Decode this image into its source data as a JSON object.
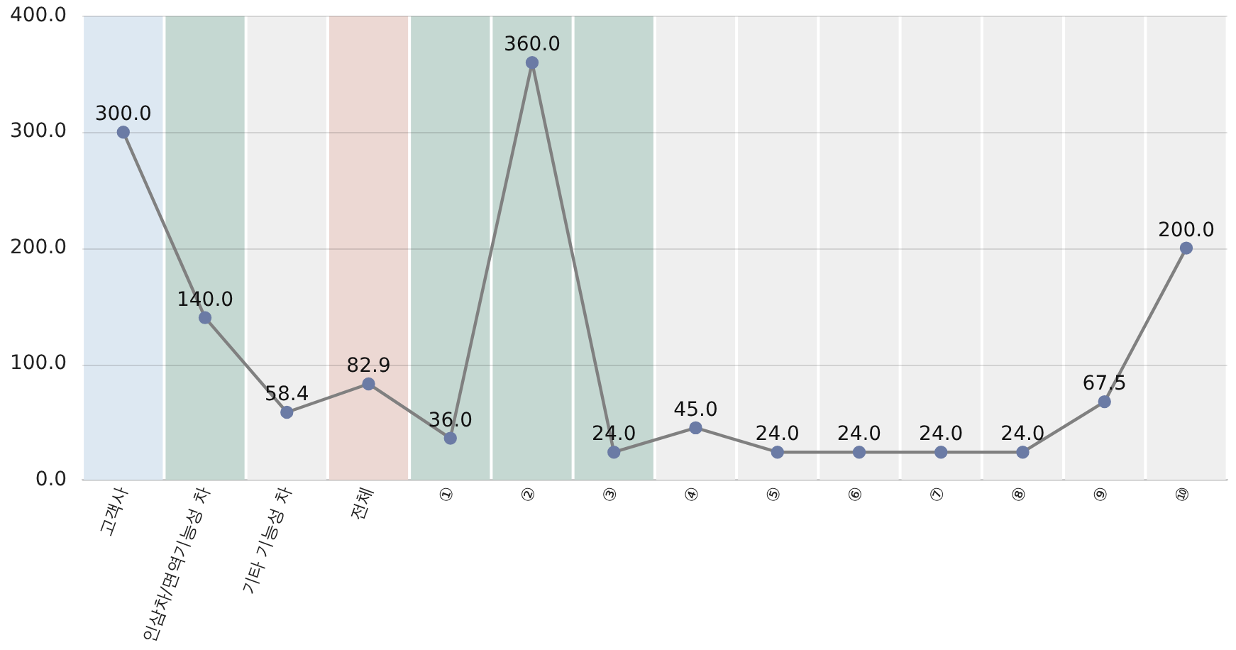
{
  "chart_data": {
    "type": "line",
    "categories": [
      "고객사",
      "인삼차/면역기능성 차",
      "기타 기능성 차",
      "전체",
      "①",
      "②",
      "③",
      "④",
      "⑤",
      "⑥",
      "⑦",
      "⑧",
      "⑨",
      "⑩"
    ],
    "series": [
      {
        "color": "#808080",
        "values": [
          300.0,
          140.0,
          58.4,
          82.9,
          36.0,
          360.0,
          24.0,
          45.0,
          24.0,
          24.0,
          24.0,
          24.0,
          67.5,
          200.0
        ],
        "value_labels": [
          "300.0",
          "140.0",
          "58.4",
          "82.9",
          "36.0",
          "360.0",
          "24.0",
          "45.0",
          "24.0",
          "24.0",
          "24.0",
          "24.0",
          "67.5",
          "200.0"
        ]
      }
    ],
    "ylim": [
      0,
      400
    ],
    "yticks": [
      {
        "value": 0,
        "label": "0.0"
      },
      {
        "value": 100,
        "label": "100.0"
      },
      {
        "value": 200,
        "label": "200.0"
      },
      {
        "value": 300,
        "label": "300.0"
      },
      {
        "value": 400,
        "label": "400.0"
      }
    ],
    "grid": "y",
    "legend": false,
    "marker": "circle",
    "line_style": "solid",
    "bands": [
      {
        "axis": "x",
        "from": "고객사",
        "to": "고객사",
        "color": "#dde8f2"
      },
      {
        "axis": "x",
        "from": "인삼차/면역기능성 차",
        "to": "인삼차/면역기능성 차",
        "color": "#c5d8d2"
      },
      {
        "axis": "x",
        "from": "기타 기능성 차",
        "to": "기타 기능성 차",
        "color": "#efefef"
      },
      {
        "axis": "x",
        "from": "전체",
        "to": "전체",
        "color": "#ecd8d3"
      },
      {
        "axis": "x",
        "from": "①",
        "to": "①",
        "color": "#c5d8d2"
      },
      {
        "axis": "x",
        "from": "②",
        "to": "②",
        "color": "#c5d8d2"
      },
      {
        "axis": "x",
        "from": "③",
        "to": "③",
        "color": "#c5d8d2"
      },
      {
        "axis": "x",
        "from": "④",
        "to": "④",
        "color": "#efefef"
      },
      {
        "axis": "x",
        "from": "⑤",
        "to": "⑤",
        "color": "#efefef"
      },
      {
        "axis": "x",
        "from": "⑥",
        "to": "⑥",
        "color": "#efefef"
      },
      {
        "axis": "x",
        "from": "⑦",
        "to": "⑦",
        "color": "#efefef"
      },
      {
        "axis": "x",
        "from": "⑧",
        "to": "⑧",
        "color": "#efefef"
      },
      {
        "axis": "x",
        "from": "⑨",
        "to": "⑨",
        "color": "#efefef"
      },
      {
        "axis": "x",
        "from": "⑩",
        "to": "⑩",
        "color": "#efefef"
      }
    ]
  }
}
